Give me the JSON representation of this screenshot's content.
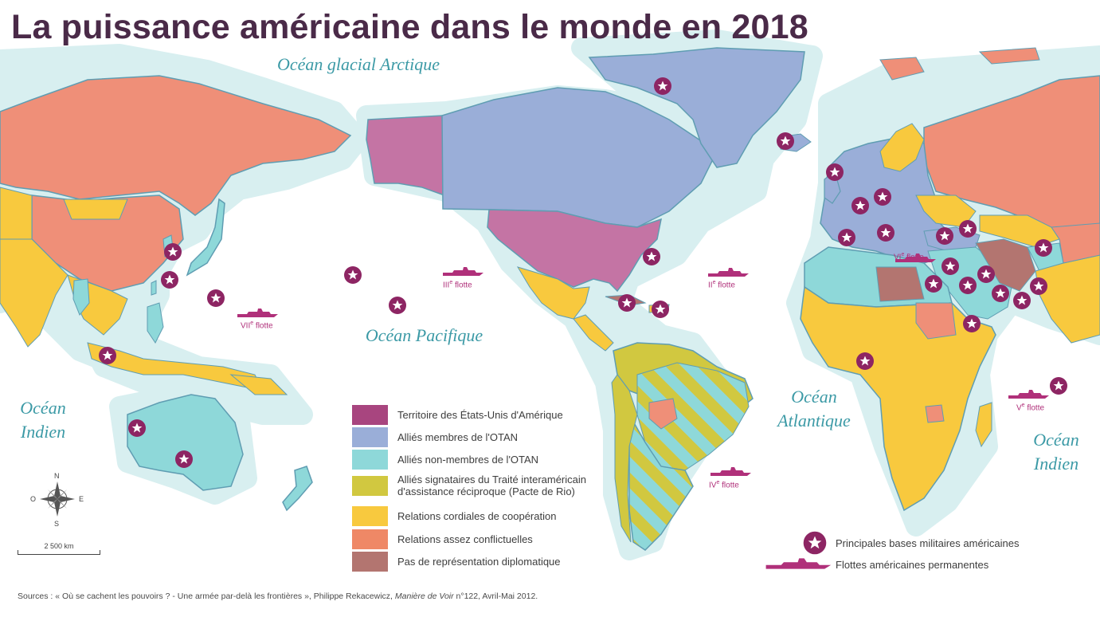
{
  "title": "La puissance américaine dans le monde en 2018",
  "oceans": {
    "arctic": "Océan glacial Arctique",
    "pacific": "Océan Pacifique",
    "indian_west": "Océan Indien",
    "atlantic": "Océan Atlantique",
    "indian_east": "Océan Indien"
  },
  "legend": [
    {
      "label": "Territoire des États-Unis d'Amérique",
      "color": "#a8457f"
    },
    {
      "label": "Alliés membres de l'OTAN",
      "color": "#9aaed8"
    },
    {
      "label": "Alliés non-membres de l'OTAN",
      "color": "#8ed8d9"
    },
    {
      "label": "Alliés signataires du Traité interaméricain d'assistance réciproque (Pacte de Rio)",
      "color": "#d1c840"
    },
    {
      "label": "Relations cordiales de coopération",
      "color": "#f8c93e"
    },
    {
      "label": "Relations assez conflictuelles",
      "color": "#ef8866"
    },
    {
      "label": "Pas de représentation diplomatique",
      "color": "#b37570"
    }
  ],
  "symbols": {
    "bases_label": "Principales bases militaires américaines",
    "fleets_label": "Flottes américaines permanentes"
  },
  "fleets": [
    {
      "numeral": "III",
      "word": "flotte"
    },
    {
      "numeral": "II",
      "word": "flotte"
    },
    {
      "numeral": "VII",
      "word": "flotte"
    },
    {
      "numeral": "VI",
      "word": "flotte"
    },
    {
      "numeral": "V",
      "word": "flotte"
    },
    {
      "numeral": "IV",
      "word": "flotte"
    }
  ],
  "scale_label": "2 500 km",
  "compass": {
    "n": "N",
    "s": "S",
    "e": "E",
    "o": "O"
  },
  "source": {
    "prefix": "Sources : « Où se cachent les pouvoirs ? - Une armée par-delà les frontières », Philippe Rekacewicz, ",
    "publication": "Manière de Voir",
    "suffix": " n°122, Avril-Mai 2012."
  },
  "colors": {
    "usa": "#c474a4",
    "nato": "#9aaed8",
    "non_nato": "#8ed8d9",
    "rio": "#d1c840",
    "cordial": "#f8c93e",
    "conflict": "#ef8f78",
    "none": "#b37570",
    "halo": "#d8eff0",
    "coast": "#5f9db2",
    "base": "#8d2563",
    "fleet": "#b0307a"
  }
}
